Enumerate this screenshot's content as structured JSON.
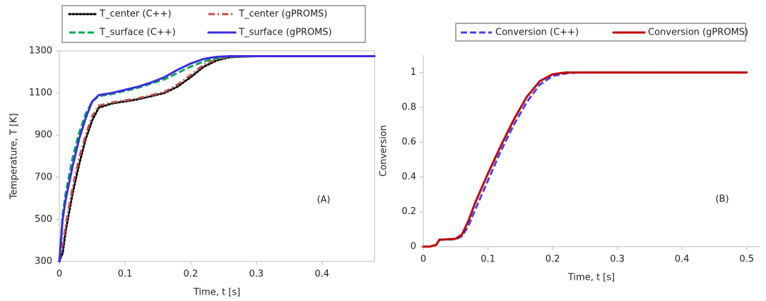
{
  "chart_data": [
    {
      "type": "line",
      "x_label": "Time, t [s]",
      "y_label": "Temperature, T [K]",
      "annotation": "(A)",
      "frame": true,
      "x": [
        0,
        0.005,
        0.01,
        0.02,
        0.03,
        0.04,
        0.05,
        0.06,
        0.08,
        0.1,
        0.12,
        0.14,
        0.16,
        0.18,
        0.2,
        0.22,
        0.24,
        0.26,
        0.3,
        0.35,
        0.4,
        0.48
      ],
      "xlim": [
        0,
        0.48
      ],
      "xticks": [
        0,
        0.1,
        0.2,
        0.3,
        0.4
      ],
      "ylim": [
        300,
        1300
      ],
      "yticks": [
        300,
        500,
        700,
        900,
        1100,
        1300
      ],
      "series": [
        {
          "name": "T_center (C++)",
          "color": "#000000",
          "dash": "dotted",
          "values": [
            300,
            340,
            450,
            620,
            760,
            880,
            970,
            1030,
            1050,
            1060,
            1070,
            1085,
            1100,
            1130,
            1175,
            1225,
            1255,
            1270,
            1275,
            1275,
            1275,
            1275
          ]
        },
        {
          "name": "T_center (gPROMS)",
          "color": "#c0504d",
          "dash": "dashdot",
          "values": [
            300,
            380,
            480,
            650,
            790,
            900,
            990,
            1040,
            1055,
            1065,
            1075,
            1090,
            1105,
            1140,
            1185,
            1235,
            1260,
            1272,
            1275,
            1275,
            1275,
            1275
          ]
        },
        {
          "name": "T_surface (C++)",
          "color": "#00a651",
          "dash": "dashed",
          "values": [
            300,
            520,
            630,
            790,
            910,
            1000,
            1060,
            1085,
            1095,
            1110,
            1125,
            1145,
            1165,
            1195,
            1225,
            1250,
            1265,
            1273,
            1275,
            1275,
            1275,
            1275
          ]
        },
        {
          "name": "T_surface (gPROMS)",
          "color": "#3b2be0",
          "dash": "solid",
          "values": [
            300,
            500,
            600,
            750,
            880,
            980,
            1060,
            1090,
            1100,
            1115,
            1130,
            1150,
            1175,
            1210,
            1240,
            1262,
            1272,
            1275,
            1275,
            1275,
            1275,
            1275
          ]
        }
      ]
    },
    {
      "type": "line",
      "x_label": "Time, t [s]",
      "y_label": "Conversion",
      "annotation": "(B)",
      "frame": false,
      "x": [
        0,
        0.01,
        0.02,
        0.025,
        0.03,
        0.05,
        0.06,
        0.07,
        0.08,
        0.1,
        0.12,
        0.14,
        0.16,
        0.18,
        0.2,
        0.22,
        0.24,
        0.3,
        0.4,
        0.5
      ],
      "xlim": [
        0,
        0.52
      ],
      "xticks": [
        0,
        0.1,
        0.2,
        0.3,
        0.4,
        0.5
      ],
      "ylim": [
        0,
        1.1
      ],
      "yticks": [
        0,
        0.2,
        0.4,
        0.6,
        0.8,
        1
      ],
      "series": [
        {
          "name": "Conversion (C++)",
          "color": "#4a3ff0",
          "dash": "dashed",
          "values": [
            0,
            0,
            0.01,
            0.04,
            0.04,
            0.042,
            0.06,
            0.12,
            0.21,
            0.38,
            0.55,
            0.7,
            0.83,
            0.93,
            0.98,
            0.995,
            1,
            1,
            1,
            1
          ]
        },
        {
          "name": "Conversion (gPROMS)",
          "color": "#c00000",
          "dash": "solid",
          "values": [
            0,
            0,
            0.01,
            0.04,
            0.04,
            0.045,
            0.07,
            0.15,
            0.25,
            0.42,
            0.58,
            0.73,
            0.86,
            0.95,
            0.99,
            1,
            1,
            1,
            1,
            1
          ]
        }
      ]
    }
  ]
}
